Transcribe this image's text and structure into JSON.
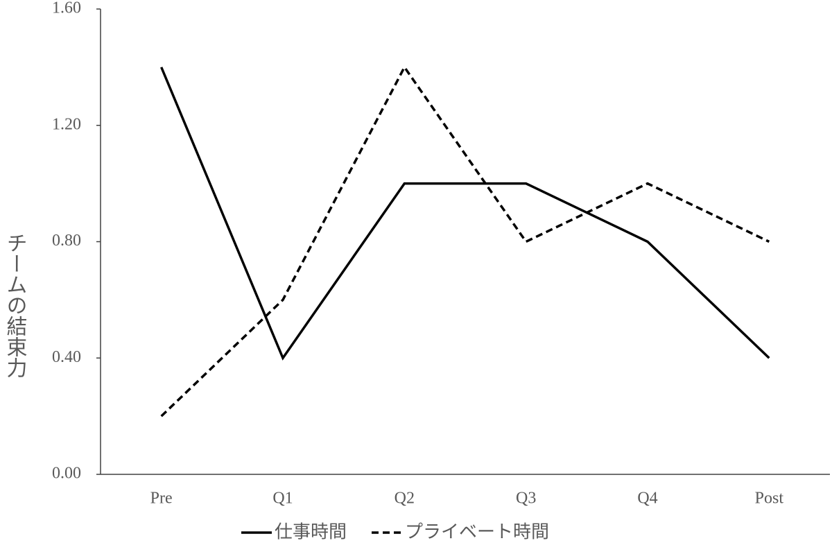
{
  "chart_data": {
    "type": "line",
    "y_label": "チームの結束力",
    "categories": [
      "Pre",
      "Q1",
      "Q2",
      "Q3",
      "Q4",
      "Post"
    ],
    "series": [
      {
        "name": "仕事時間",
        "color": "#000000",
        "line_style": "solid",
        "values": [
          1.4,
          0.4,
          1.0,
          1.0,
          0.8,
          0.4
        ]
      },
      {
        "name": "プライベート時間",
        "color": "#000000",
        "line_style": "dashed",
        "values": [
          0.2,
          0.6,
          1.4,
          0.8,
          1.0,
          0.8
        ]
      }
    ],
    "ylim": [
      0,
      1.6
    ],
    "yticks": [
      {
        "value": 0,
        "label": "0.00"
      },
      {
        "value": 0.4,
        "label": "0.40"
      },
      {
        "value": 0.8,
        "label": "0.80"
      },
      {
        "value": 1.2,
        "label": "1.20"
      },
      {
        "value": 1.6,
        "label": "1.60"
      }
    ],
    "grid": false,
    "legend": "bottom"
  }
}
